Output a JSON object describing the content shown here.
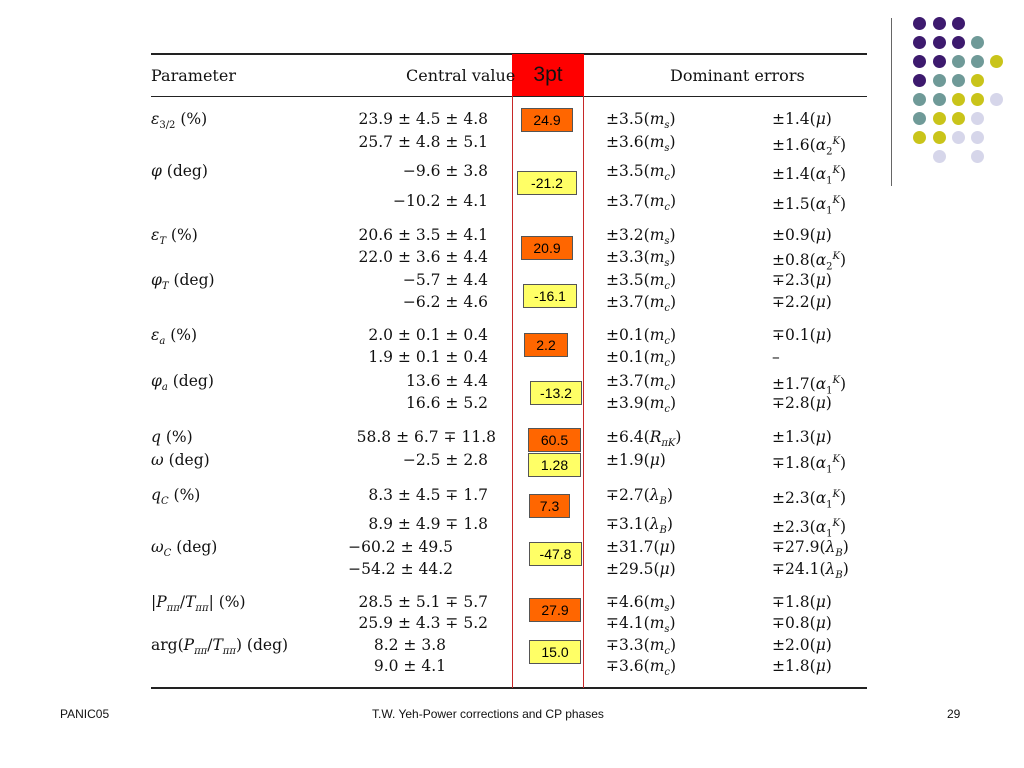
{
  "table": {
    "headers": {
      "parameter": "Parameter",
      "central": "Central value",
      "threept": "3pt",
      "errors": "Dominant errors"
    },
    "rows": [
      {
        "param": "ε3/2 (%)",
        "central": "23.9 ± 4.5 ± 4.8",
        "e1": "±3.5(ms)",
        "e2": "±1.4(μ)"
      },
      {
        "param": "",
        "central": "25.7 ± 4.8 ± 5.1",
        "e1": "±3.6(ms)",
        "e2": "±1.6(α2K)"
      },
      {
        "param": "φ (deg)",
        "central": "−9.6 ± 3.8",
        "e1": "±3.5(mc)",
        "e2": "±1.4(α1K)"
      },
      {
        "param": "",
        "central": "−10.2 ± 4.1",
        "e1": "±3.7(mc)",
        "e2": "±1.5(α1K)"
      },
      {
        "param": "εT (%)",
        "central": "20.6 ± 3.5 ± 4.1",
        "e1": "±3.2(ms)",
        "e2": "±0.9(μ)"
      },
      {
        "param": "",
        "central": "22.0 ± 3.6 ± 4.4",
        "e1": "±3.3(ms)",
        "e2": "±0.8(α2K)"
      },
      {
        "param": "φT (deg)",
        "central": "−5.7 ± 4.4",
        "e1": "±3.5(mc)",
        "e2": "∓2.3(μ)"
      },
      {
        "param": "",
        "central": "−6.2 ± 4.6",
        "e1": "±3.7(mc)",
        "e2": "∓2.2(μ)"
      },
      {
        "param": "εa (%)",
        "central": "2.0 ± 0.1 ± 0.4",
        "e1": "±0.1(mc)",
        "e2": "∓0.1(μ)"
      },
      {
        "param": "",
        "central": "1.9 ± 0.1 ± 0.4",
        "e1": "±0.1(mc)",
        "e2": "–"
      },
      {
        "param": "φa (deg)",
        "central": "13.6 ± 4.4",
        "e1": "±3.7(mc)",
        "e2": "±1.7(α1K)"
      },
      {
        "param": "",
        "central": "16.6 ± 5.2",
        "e1": "±3.9(mc)",
        "e2": "∓2.8(μ)"
      },
      {
        "param": "q (%)",
        "central": "58.8 ± 6.7 ∓ 11.8",
        "e1": "±6.4(RπK)",
        "e2": "±1.3(μ)"
      },
      {
        "param": "ω (deg)",
        "central": "−2.5 ± 2.8",
        "e1": "±1.9(μ)",
        "e2": "∓1.8(α1K)"
      },
      {
        "param": "qC (%)",
        "central": "8.3 ± 4.5 ∓ 1.7",
        "e1": "∓2.7(λB)",
        "e2": "±2.3(α1K)"
      },
      {
        "param": "",
        "central": "8.9 ± 4.9 ∓ 1.8",
        "e1": "∓3.1(λB)",
        "e2": "±2.3(α1K)"
      },
      {
        "param": "ωC (deg)",
        "central": "−60.2 ± 49.5",
        "e1": "±31.7(μ)",
        "e2": "∓27.9(λB)"
      },
      {
        "param": "",
        "central": "−54.2 ± 44.2",
        "e1": "±29.5(μ)",
        "e2": "∓24.1(λB)"
      },
      {
        "param": "|Pππ/Tππ| (%)",
        "central": "28.5 ± 5.1 ∓ 5.7",
        "e1": "∓4.6(ms)",
        "e2": "∓1.8(μ)"
      },
      {
        "param": "",
        "central": "25.9 ± 4.3 ∓ 5.2",
        "e1": "∓4.1(ms)",
        "e2": "∓0.8(μ)"
      },
      {
        "param": "arg(Pππ/Tππ) (deg)",
        "central": "8.2 ± 3.8",
        "e1": "∓3.3(mc)",
        "e2": "±2.0(μ)"
      },
      {
        "param": "",
        "central": "9.0 ± 4.1",
        "e1": "∓3.6(mc)",
        "e2": "±1.8(μ)"
      }
    ],
    "threept_values": [
      {
        "value": "24.9",
        "color": "#ff6600"
      },
      {
        "value": "-21.2",
        "color": "#ffff66"
      },
      {
        "value": "20.9",
        "color": "#ff6600"
      },
      {
        "value": "-16.1",
        "color": "#ffff66"
      },
      {
        "value": "2.2",
        "color": "#ff6600"
      },
      {
        "value": "-13.2",
        "color": "#ffff66"
      },
      {
        "value": "60.5",
        "color": "#ff6600"
      },
      {
        "value": "1.28",
        "color": "#ffff66"
      },
      {
        "value": "7.3",
        "color": "#ff6600"
      },
      {
        "value": "-47.8",
        "color": "#ffff66"
      },
      {
        "value": "27.9",
        "color": "#ff6600"
      },
      {
        "value": "15.0",
        "color": "#ffff66"
      }
    ]
  },
  "footer": {
    "left": "PANIC05",
    "center": "T.W. Yeh-Power corrections and CP phases",
    "page": "29"
  },
  "colors": {
    "purple": "#3d1a6e",
    "teal": "#6f9a98",
    "olive": "#c9c41a",
    "lavender": "#d6d6ea",
    "header_red": "#ff0000"
  }
}
